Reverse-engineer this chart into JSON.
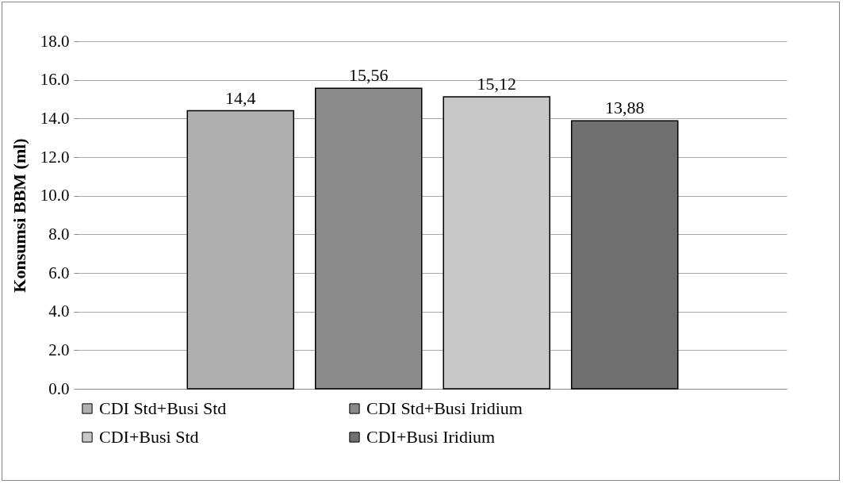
{
  "chart_data": {
    "type": "bar",
    "ylabel": "Konsumsi BBM (ml)",
    "categories": [
      null
    ],
    "series": [
      {
        "name": "CDI Std+Busi Std",
        "color": "#b0b0b0",
        "values": [
          14.4
        ],
        "value_labels": [
          "14,4"
        ]
      },
      {
        "name": "CDI Std+Busi Iridium",
        "color": "#8a8a8a",
        "values": [
          15.56
        ],
        "value_labels": [
          "15,56"
        ]
      },
      {
        "name": "CDI+Busi Std",
        "color": "#c8c8c8",
        "values": [
          15.12
        ],
        "value_labels": [
          "15,12"
        ]
      },
      {
        "name": "CDI+Busi Iridium",
        "color": "#707070",
        "values": [
          13.88
        ],
        "value_labels": [
          "13,88"
        ]
      }
    ],
    "ylim": [
      0,
      18
    ],
    "yticks": [
      {
        "value": 0,
        "label": "0.0"
      },
      {
        "value": 2,
        "label": "2.0"
      },
      {
        "value": 4,
        "label": "4.0"
      },
      {
        "value": 6,
        "label": "6.0"
      },
      {
        "value": 8,
        "label": "8.0"
      },
      {
        "value": 10,
        "label": "10.0"
      },
      {
        "value": 12,
        "label": "12.0"
      },
      {
        "value": 14,
        "label": "14.0"
      },
      {
        "value": 16,
        "label": "16.0"
      },
      {
        "value": 18,
        "label": "18.0"
      }
    ],
    "grid": "y",
    "legend": "bottom",
    "tick_labels": "y"
  }
}
